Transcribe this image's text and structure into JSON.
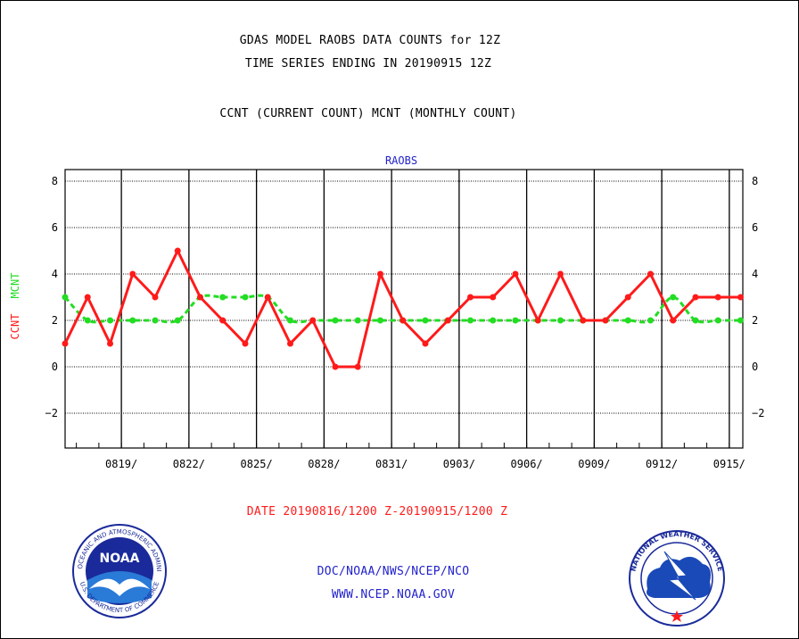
{
  "titles": {
    "line1": "GDAS MODEL RAOBS DATA COUNTS for 12Z",
    "line2": "TIME SERIES ENDING IN 20190915 12Z",
    "line3": "CCNT (CURRENT COUNT) MCNT (MONTHLY COUNT)"
  },
  "footer": {
    "date_range": "DATE 20190816/1200 Z-20190915/1200 Z",
    "org": "DOC/NOAA/NWS/NCEP/NCO",
    "url": "WWW.NCEP.NOAA.GOV"
  },
  "logos": {
    "noaa_text": "NOAA",
    "noaa_ring_top": "NATIONAL OCEANIC AND ATMOSPHERIC ADMINISTRATION",
    "noaa_ring_bottom": "U.S. DEPARTMENT OF COMMERCE",
    "nws_ring": "NATIONAL WEATHER SERVICE"
  },
  "colors": {
    "ccnt": "#ff1a1a",
    "mcnt": "#22dd22",
    "panel_label": "#2222cc",
    "date_text": "#ff1a1a",
    "footer_text": "#2222cc"
  },
  "chart_data": {
    "type": "line",
    "panel_title": "RAOBS",
    "ylabel_left_ccnt": "CCNT",
    "ylabel_left_mcnt": "MCNT",
    "ylim": [
      -3.5,
      8.5
    ],
    "yticks": [
      8,
      6,
      4,
      2,
      0,
      -2
    ],
    "ytick_labels": [
      "8",
      "6",
      "4",
      "2",
      "0",
      "−2"
    ],
    "xlim": [
      0,
      30.1
    ],
    "xticks": [
      2.5,
      5.5,
      8.5,
      11.5,
      14.5,
      17.5,
      20.5,
      23.5,
      26.5,
      29.5
    ],
    "xtick_labels": [
      "0819/",
      "0822/",
      "0825/",
      "0828/",
      "0831/",
      "0903/",
      "0906/",
      "0909/",
      "0912/",
      "0915/"
    ],
    "major_gridlines_x": [
      2.5,
      5.5,
      8.5,
      11.5,
      14.5,
      17.5,
      20.5,
      23.5,
      26.5,
      29.5
    ],
    "grid": true,
    "x": [
      0,
      1,
      2,
      3,
      4,
      5,
      6,
      7,
      8,
      9,
      10,
      11,
      12,
      13,
      14,
      15,
      16,
      17,
      18,
      19,
      20,
      21,
      22,
      23,
      24,
      25,
      26,
      27,
      28,
      29,
      30
    ],
    "series": [
      {
        "name": "CCNT",
        "values": [
          1,
          3,
          1,
          4,
          3,
          5,
          3,
          2,
          1,
          3,
          1,
          2,
          0,
          0,
          4,
          2,
          1,
          2,
          3,
          3,
          4,
          2,
          4,
          2,
          2,
          3,
          4,
          2,
          3,
          3,
          3
        ]
      },
      {
        "name": "MCNT",
        "values": [
          3,
          2,
          2,
          2,
          2,
          2,
          3,
          3,
          3,
          3,
          2,
          2,
          2,
          2,
          2,
          2,
          2,
          2,
          2,
          2,
          2,
          2,
          2,
          2,
          2,
          2,
          2,
          3,
          2,
          2,
          2
        ]
      }
    ]
  }
}
